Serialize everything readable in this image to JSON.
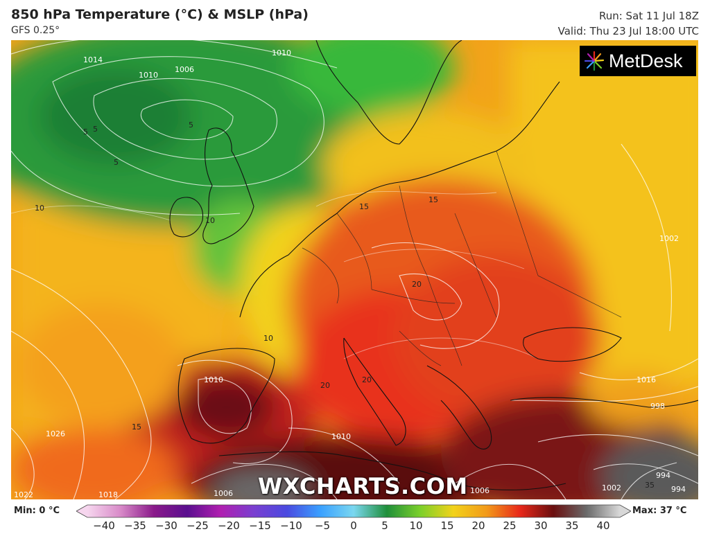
{
  "header": {
    "title": "850 hPa Temperature (°C) & MSLP (hPa)",
    "model": "GFS 0.25°",
    "run": "Run: Sat 11 Jul 18Z",
    "valid": "Valid: Thu 23 Jul 18:00 UTC"
  },
  "branding": {
    "logo_text": "MetDesk",
    "watermark": "WXCHARTS.COM"
  },
  "legend": {
    "min_label": "Min: 0 °C",
    "max_label": "Max: 37 °C",
    "ticks": [
      "−40",
      "−35",
      "−30",
      "−25",
      "−20",
      "−15",
      "−10",
      "−5",
      "0",
      "5",
      "10",
      "15",
      "20",
      "25",
      "30",
      "35",
      "40"
    ],
    "stops": [
      {
        "value": -40,
        "color": "#f6d6ee"
      },
      {
        "value": -35,
        "color": "#d88ac8"
      },
      {
        "value": -30,
        "color": "#8a1a8a"
      },
      {
        "value": -25,
        "color": "#5a0f8f"
      },
      {
        "value": -20,
        "color": "#b01fb0"
      },
      {
        "value": -15,
        "color": "#7a3fd0"
      },
      {
        "value": -10,
        "color": "#4a4ae0"
      },
      {
        "value": -5,
        "color": "#3aa0ff"
      },
      {
        "value": 0,
        "color": "#7ad7f0"
      },
      {
        "value": 5,
        "color": "#1f8f3a"
      },
      {
        "value": 10,
        "color": "#7bd02a"
      },
      {
        "value": 15,
        "color": "#f2d21a"
      },
      {
        "value": 20,
        "color": "#f29a1a"
      },
      {
        "value": 25,
        "color": "#e8281a"
      },
      {
        "value": 30,
        "color": "#6a0f0f"
      },
      {
        "value": 35,
        "color": "#6a6a6a"
      },
      {
        "value": 40,
        "color": "#d8d8d8"
      }
    ]
  },
  "isobar_labels": [
    "1014",
    "1010",
    "1010",
    "1006",
    "1002",
    "1010",
    "1010",
    "1026",
    "1022",
    "1018",
    "1006",
    "1016",
    "998",
    "994",
    "994",
    "1002",
    "1006"
  ],
  "temperature_labels": [
    "5",
    "5",
    "5",
    "5",
    "10",
    "10",
    "15",
    "15",
    "10",
    "20",
    "20",
    "20",
    "15",
    "35"
  ]
}
